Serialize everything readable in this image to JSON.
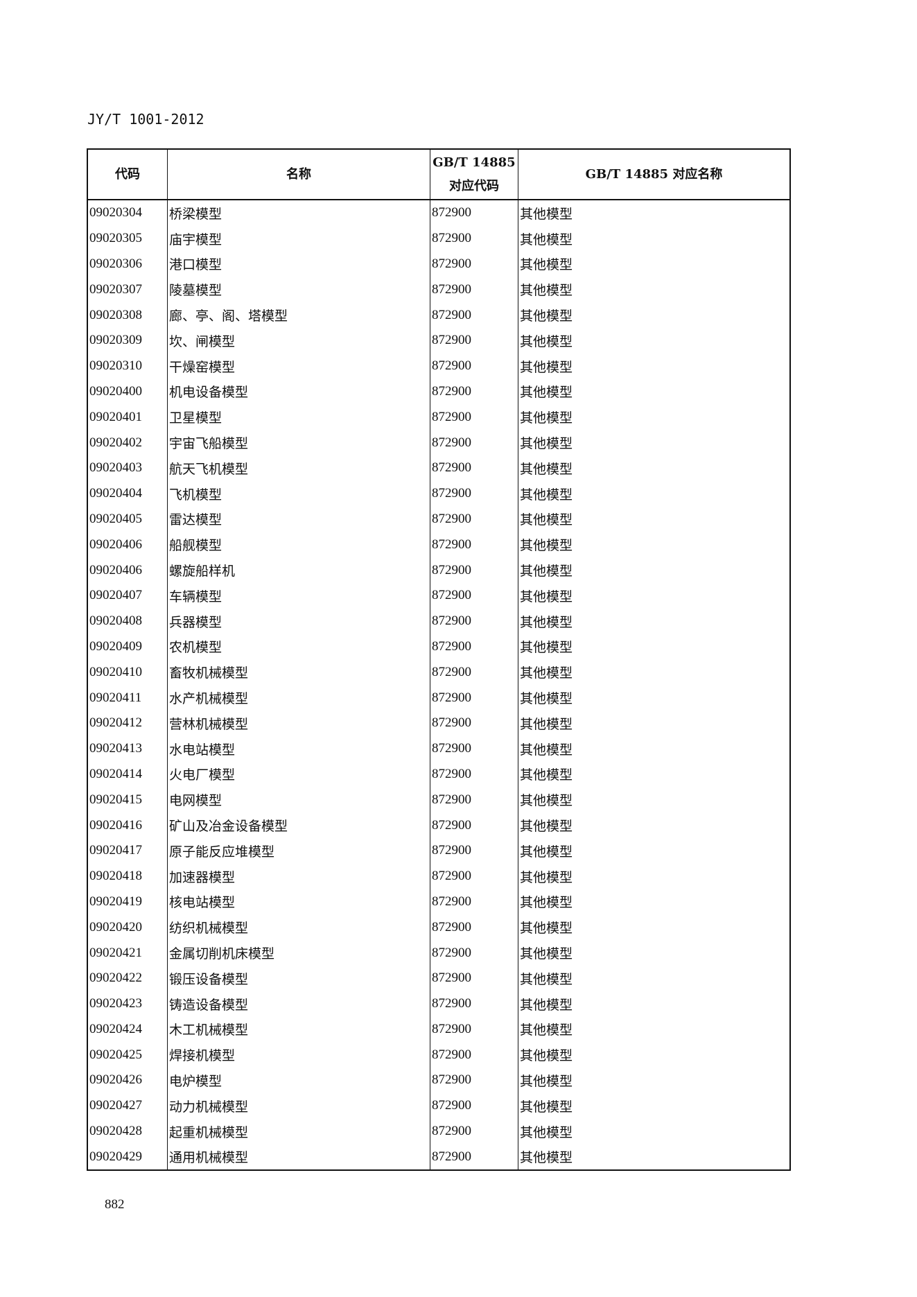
{
  "header": {
    "doc_id": "JY/T 1001-2012"
  },
  "table": {
    "columns": [
      "代码",
      "名称",
      "GB/T 14885 对应代码",
      "GB/T 14885 对应名称"
    ],
    "column_lines": [
      [
        "GB/T 14885",
        "对应代码"
      ]
    ],
    "rows": [
      [
        "09020304",
        "桥梁模型",
        "872900",
        "其他模型"
      ],
      [
        "09020305",
        "庙宇模型",
        "872900",
        "其他模型"
      ],
      [
        "09020306",
        "港口模型",
        "872900",
        "其他模型"
      ],
      [
        "09020307",
        "陵墓模型",
        "872900",
        "其他模型"
      ],
      [
        "09020308",
        "廊、亭、阁、塔模型",
        "872900",
        "其他模型"
      ],
      [
        "09020309",
        "坎、闸模型",
        "872900",
        "其他模型"
      ],
      [
        "09020310",
        "干燥窑模型",
        "872900",
        "其他模型"
      ],
      [
        "09020400",
        "机电设备模型",
        "872900",
        "其他模型"
      ],
      [
        "09020401",
        "卫星模型",
        "872900",
        "其他模型"
      ],
      [
        "09020402",
        "宇宙飞船模型",
        "872900",
        "其他模型"
      ],
      [
        "09020403",
        "航天飞机模型",
        "872900",
        "其他模型"
      ],
      [
        "09020404",
        "飞机模型",
        "872900",
        "其他模型"
      ],
      [
        "09020405",
        "雷达模型",
        "872900",
        "其他模型"
      ],
      [
        "09020406",
        "船舰模型",
        "872900",
        "其他模型"
      ],
      [
        "09020406",
        "螺旋船样机",
        "872900",
        "其他模型"
      ],
      [
        "09020407",
        "车辆模型",
        "872900",
        "其他模型"
      ],
      [
        "09020408",
        "兵器模型",
        "872900",
        "其他模型"
      ],
      [
        "09020409",
        "农机模型",
        "872900",
        "其他模型"
      ],
      [
        "09020410",
        "畜牧机械模型",
        "872900",
        "其他模型"
      ],
      [
        "09020411",
        "水产机械模型",
        "872900",
        "其他模型"
      ],
      [
        "09020412",
        "营林机械模型",
        "872900",
        "其他模型"
      ],
      [
        "09020413",
        "水电站模型",
        "872900",
        "其他模型"
      ],
      [
        "09020414",
        "火电厂模型",
        "872900",
        "其他模型"
      ],
      [
        "09020415",
        "电网模型",
        "872900",
        "其他模型"
      ],
      [
        "09020416",
        "矿山及冶金设备模型",
        "872900",
        "其他模型"
      ],
      [
        "09020417",
        "原子能反应堆模型",
        "872900",
        "其他模型"
      ],
      [
        "09020418",
        "加速器模型",
        "872900",
        "其他模型"
      ],
      [
        "09020419",
        "核电站模型",
        "872900",
        "其他模型"
      ],
      [
        "09020420",
        "纺织机械模型",
        "872900",
        "其他模型"
      ],
      [
        "09020421",
        "金属切削机床模型",
        "872900",
        "其他模型"
      ],
      [
        "09020422",
        "锻压设备模型",
        "872900",
        "其他模型"
      ],
      [
        "09020423",
        "铸造设备模型",
        "872900",
        "其他模型"
      ],
      [
        "09020424",
        "木工机械模型",
        "872900",
        "其他模型"
      ],
      [
        "09020425",
        "焊接机模型",
        "872900",
        "其他模型"
      ],
      [
        "09020426",
        "电炉模型",
        "872900",
        "其他模型"
      ],
      [
        "09020427",
        "动力机械模型",
        "872900",
        "其他模型"
      ],
      [
        "09020428",
        "起重机械模型",
        "872900",
        "其他模型"
      ],
      [
        "09020429",
        "通用机械模型",
        "872900",
        "其他模型"
      ]
    ]
  },
  "footer": {
    "page_number": "882"
  }
}
